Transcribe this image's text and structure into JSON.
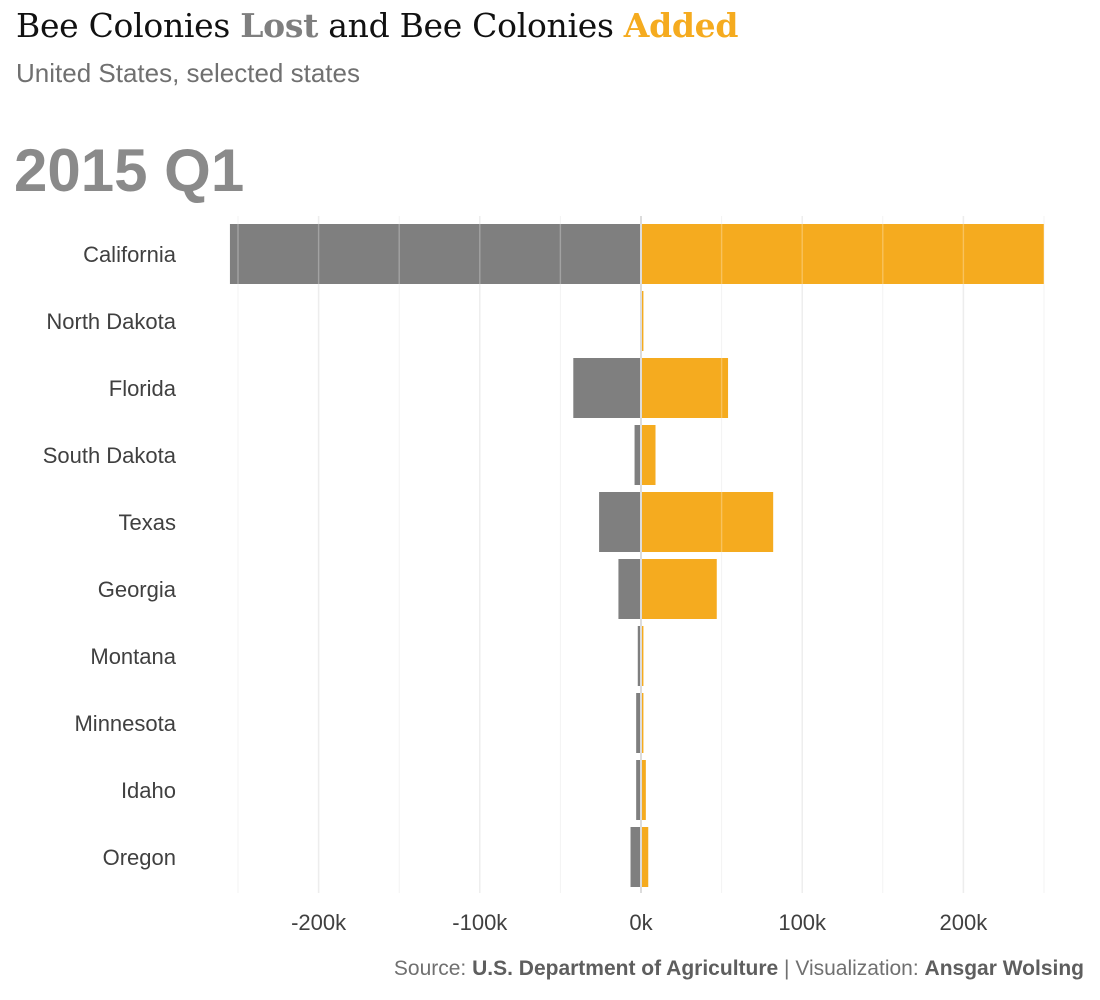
{
  "title": {
    "part1": "Bee Colonies ",
    "lost": "Lost",
    "part2": " and Bee Colonies ",
    "added": "Added"
  },
  "subtitle": "United States, selected states",
  "period": "2015 Q1",
  "caption": {
    "source_label": "Source: ",
    "source": "U.S. Department of Agriculture",
    "separator": " | Visualization: ",
    "author": "Ansgar Wolsing"
  },
  "colors": {
    "lost": "#7f7f7f",
    "added": "#f5ab1f",
    "grid": "#e6e6e6"
  },
  "chart_data": {
    "type": "bar",
    "orientation": "horizontal",
    "title": "Bee Colonies Lost and Bee Colonies Added",
    "subtitle": "United States, selected states",
    "categories": [
      "California",
      "North Dakota",
      "Florida",
      "South Dakota",
      "Texas",
      "Georgia",
      "Montana",
      "Minnesota",
      "Idaho",
      "Oregon"
    ],
    "series": [
      {
        "name": "Lost",
        "values": [
          -255000,
          0,
          -42000,
          -4000,
          -26000,
          -14000,
          -2000,
          -3000,
          -3000,
          -6500
        ]
      },
      {
        "name": "Added",
        "values": [
          250000,
          1500,
          54000,
          9000,
          82000,
          47000,
          1500,
          1500,
          3000,
          4500
        ]
      }
    ],
    "xlim": [
      -250000,
      250000
    ],
    "xticks": [
      -200000,
      -100000,
      0,
      100000,
      200000
    ],
    "xtick_labels": [
      "-200k",
      "-100k",
      "0k",
      "100k",
      "200k"
    ],
    "grid": true,
    "legend": "none"
  }
}
